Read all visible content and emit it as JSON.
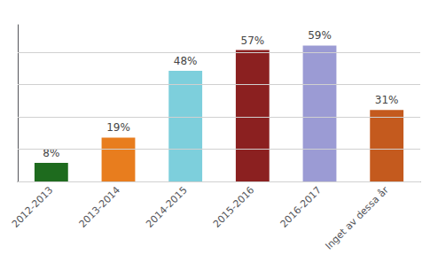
{
  "chart_data": {
    "type": "bar",
    "categories": [
      "2012-2013",
      "2013-2014",
      "2014-2015",
      "2015-2016",
      "2016-2017",
      "Inget av dessa år"
    ],
    "values": [
      8,
      19,
      48,
      57,
      59,
      31
    ],
    "value_labels": [
      "8%",
      "19%",
      "48%",
      "57%",
      "59%",
      "31%"
    ],
    "colors": [
      "#1e6b1e",
      "#e87d1e",
      "#7dcfdc",
      "#8b2020",
      "#9b9bd4",
      "#c45a1e"
    ],
    "ylim": [
      0,
      68
    ],
    "yticks": [
      0,
      14,
      28,
      42,
      56
    ],
    "grid": true,
    "tick_labels": "x",
    "data_labels": true
  }
}
